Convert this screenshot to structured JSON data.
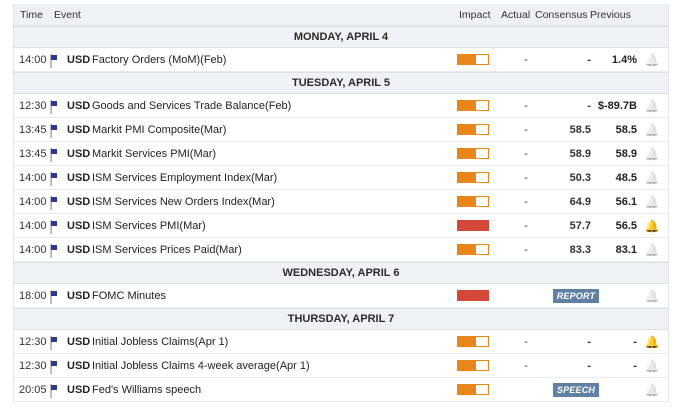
{
  "header": {
    "time": "Time",
    "event": "Event",
    "impact": "Impact",
    "actual": "Actual",
    "consensus": "Consensus",
    "previous": "Previous"
  },
  "days": [
    {
      "label": "MONDAY, APRIL 4",
      "events": [
        {
          "time": "14:00",
          "currency": "USD",
          "name": "Factory Orders (MoM)(Feb)",
          "impact": 0.6,
          "impact_level": "medium",
          "actual": "-",
          "consensus": "-",
          "previous": "1.4%",
          "bell": "off",
          "bell_icon": "bell-icon"
        }
      ]
    },
    {
      "label": "TUESDAY, APRIL 5",
      "events": [
        {
          "time": "12:30",
          "currency": "USD",
          "name": "Goods and Services Trade Balance(Feb)",
          "impact": 0.6,
          "impact_level": "medium",
          "actual": "-",
          "consensus": "-",
          "previous": "$-89.7B",
          "bell": "off"
        },
        {
          "time": "13:45",
          "currency": "USD",
          "name": "Markit PMI Composite(Mar)",
          "impact": 0.6,
          "impact_level": "medium",
          "actual": "-",
          "consensus": "58.5",
          "previous": "58.5",
          "bell": "off"
        },
        {
          "time": "13:45",
          "currency": "USD",
          "name": "Markit Services PMI(Mar)",
          "impact": 0.6,
          "impact_level": "medium",
          "actual": "-",
          "consensus": "58.9",
          "previous": "58.9",
          "bell": "off"
        },
        {
          "time": "14:00",
          "currency": "USD",
          "name": "ISM Services Employment Index(Mar)",
          "impact": 0.6,
          "impact_level": "medium",
          "actual": "-",
          "consensus": "50.3",
          "previous": "48.5",
          "bell": "off"
        },
        {
          "time": "14:00",
          "currency": "USD",
          "name": "ISM Services New Orders Index(Mar)",
          "impact": 0.6,
          "impact_level": "medium",
          "actual": "-",
          "consensus": "64.9",
          "previous": "56.1",
          "bell": "off"
        },
        {
          "time": "14:00",
          "currency": "USD",
          "name": "ISM Services PMI(Mar)",
          "impact": 1.0,
          "impact_level": "high",
          "actual": "-",
          "consensus": "57.7",
          "previous": "56.5",
          "bell": "on"
        },
        {
          "time": "14:00",
          "currency": "USD",
          "name": "ISM Services Prices Paid(Mar)",
          "impact": 0.6,
          "impact_level": "medium",
          "actual": "-",
          "consensus": "83.3",
          "previous": "83.1",
          "bell": "off"
        }
      ]
    },
    {
      "label": "WEDNESDAY, APRIL 6",
      "events": [
        {
          "time": "18:00",
          "currency": "USD",
          "name": "FOMC Minutes",
          "impact": 1.0,
          "impact_level": "high",
          "tag": "REPORT",
          "bell": "off"
        }
      ]
    },
    {
      "label": "THURSDAY, APRIL 7",
      "events": [
        {
          "time": "12:30",
          "currency": "USD",
          "name": "Initial Jobless Claims(Apr 1)",
          "impact": 0.6,
          "impact_level": "medium",
          "actual": "-",
          "consensus": "-",
          "previous": "-",
          "bell": "on"
        },
        {
          "time": "12:30",
          "currency": "USD",
          "name": "Initial Jobless Claims 4-week average(Apr 1)",
          "impact": 0.6,
          "impact_level": "medium",
          "actual": "-",
          "consensus": "-",
          "previous": "-",
          "bell": "off"
        },
        {
          "time": "20:05",
          "currency": "USD",
          "name": "Fed's Williams speech",
          "impact": 0.6,
          "impact_level": "medium",
          "tag": "SPEECH",
          "bell": "off"
        }
      ]
    }
  ],
  "colors": {
    "medium_impact": "#e8861c",
    "high_impact": "#d4483a",
    "tag_bg": "#5f80a3",
    "bell_on": "#e8861c",
    "bell_off": "#c9ccd2"
  }
}
